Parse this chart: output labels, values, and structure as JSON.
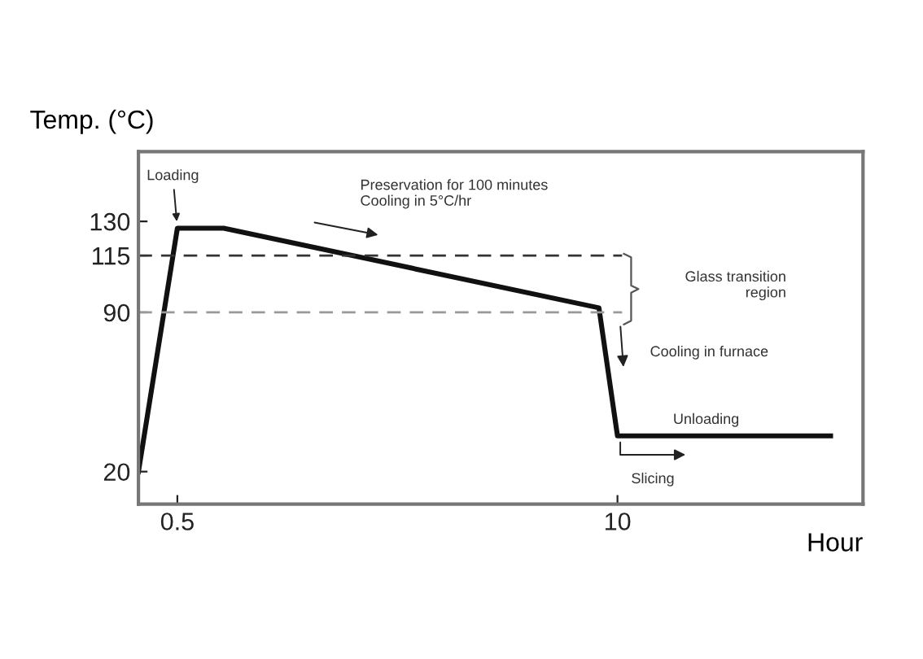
{
  "chart_data": {
    "type": "line",
    "xlabel": "Hour",
    "ylabel": "Temp. (°C)",
    "xlim": [
      -0.34,
      15.3
    ],
    "ylim": [
      5.7,
      160.7
    ],
    "xticks": [
      0.5,
      10
    ],
    "yticks": [
      20,
      90,
      115,
      130
    ],
    "grid": false,
    "marker": "none",
    "series": [
      {
        "color": "#111111",
        "line_style": "solid",
        "x": [
          -0.34,
          0.5,
          1.5,
          9.6,
          10,
          14.6
        ],
        "values": [
          20,
          127,
          127,
          92,
          35.7,
          35.7
        ]
      },
      {
        "color": "#333333",
        "line_style": "dashed",
        "x": [
          -0.34,
          10.1
        ],
        "values": [
          115,
          115
        ]
      },
      {
        "color": "#999999",
        "line_style": "dashed",
        "x": [
          -0.34,
          10.1
        ],
        "values": [
          90,
          90
        ]
      }
    ],
    "annotations": [
      {
        "text": "Loading",
        "x": 0.5,
        "y": 127
      },
      "Preservation for 100 minutes\nCooling in 5°C/hr",
      "Glass transition\nregion",
      "Cooling in furnace",
      {
        "text": "Unloading",
        "x": 11.2,
        "y": 35.7
      },
      "Slicing"
    ]
  }
}
